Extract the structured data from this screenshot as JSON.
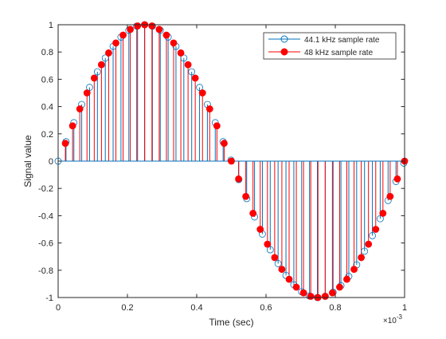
{
  "chart_data": {
    "type": "stem",
    "title": "",
    "xlabel": "Time (sec)",
    "ylabel": "Signal value",
    "x_exponent_label": "×10",
    "x_exponent_power": "-3",
    "xlim": [
      0,
      1
    ],
    "ylim": [
      -1,
      1
    ],
    "x_scale": 0.001,
    "x_ticks": [
      0,
      0.2,
      0.4,
      0.6,
      0.8,
      1
    ],
    "x_tick_labels": [
      "0",
      "0.2",
      "0.4",
      "0.6",
      "0.8",
      "1"
    ],
    "y_ticks": [
      -1,
      -0.8,
      -0.6,
      -0.4,
      -0.2,
      0,
      0.2,
      0.4,
      0.6,
      0.8,
      1
    ],
    "y_tick_labels": [
      "-1",
      "-0.8",
      "-0.6",
      "-0.4",
      "-0.2",
      "0",
      "0.2",
      "0.4",
      "0.6",
      "0.8",
      "1"
    ],
    "grid": false,
    "legend_position": "top-right",
    "series": [
      {
        "name": "44.1 kHz sample rate",
        "color": "#0072BD",
        "marker": "open-circle",
        "x": [
          0,
          0.0227,
          0.0454,
          0.068,
          0.0907,
          0.1134,
          0.1361,
          0.1587,
          0.1814,
          0.2041,
          0.2268,
          0.2494,
          0.2721,
          0.2948,
          0.3175,
          0.3401,
          0.3628,
          0.3855,
          0.4082,
          0.4308,
          0.4535,
          0.4762,
          0.4989,
          0.5215,
          0.5442,
          0.5669,
          0.5896,
          0.6122,
          0.6349,
          0.6576,
          0.6803,
          0.7029,
          0.7256,
          0.7483,
          0.771,
          0.7937,
          0.8163,
          0.839,
          0.8617,
          0.8844,
          0.907,
          0.9297,
          0.9524,
          0.9751,
          0.9977
        ],
        "y": [
          0,
          0.1423,
          0.2817,
          0.4154,
          0.5406,
          0.6549,
          0.7557,
          0.8413,
          0.9096,
          0.9595,
          0.9898,
          1.0,
          0.9898,
          0.9595,
          0.9096,
          0.8413,
          0.7557,
          0.6549,
          0.5406,
          0.4154,
          0.2817,
          0.1423,
          0.0071,
          -0.1352,
          -0.2749,
          -0.4089,
          -0.5347,
          -0.6496,
          -0.7511,
          -0.8375,
          -0.9067,
          -0.9575,
          -0.9888,
          -1.0,
          -0.9908,
          -0.9615,
          -0.9126,
          -0.8451,
          -0.7603,
          -0.6603,
          -0.5465,
          -0.4219,
          -0.2885,
          -0.1494,
          -0.0142
        ]
      },
      {
        "name": "48 kHz sample rate",
        "color": "#FF0000",
        "marker": "filled-circle",
        "x": [
          0.0208,
          0.0417,
          0.0625,
          0.0833,
          0.1042,
          0.125,
          0.1458,
          0.1667,
          0.1875,
          0.2083,
          0.2292,
          0.25,
          0.2708,
          0.2917,
          0.3125,
          0.3333,
          0.3542,
          0.375,
          0.3958,
          0.4167,
          0.4375,
          0.4583,
          0.4792,
          0.5,
          0.5208,
          0.5417,
          0.5625,
          0.5833,
          0.6042,
          0.625,
          0.6458,
          0.6667,
          0.6875,
          0.7083,
          0.7292,
          0.75,
          0.7708,
          0.7917,
          0.8125,
          0.8333,
          0.8542,
          0.875,
          0.8958,
          0.9167,
          0.9375,
          0.9583,
          0.9792,
          1.0
        ],
        "y": [
          0.1305,
          0.2588,
          0.3827,
          0.5,
          0.6088,
          0.7071,
          0.7934,
          0.866,
          0.9239,
          0.9659,
          0.9914,
          1.0,
          0.9914,
          0.9659,
          0.9239,
          0.866,
          0.7934,
          0.7071,
          0.6088,
          0.5,
          0.3827,
          0.2588,
          0.1305,
          0.0,
          -0.1305,
          -0.2588,
          -0.3827,
          -0.5,
          -0.6088,
          -0.7071,
          -0.7934,
          -0.866,
          -0.9239,
          -0.9659,
          -0.9914,
          -1.0,
          -0.9914,
          -0.9659,
          -0.9239,
          -0.866,
          -0.7934,
          -0.7071,
          -0.6088,
          -0.5,
          -0.3827,
          -0.2588,
          -0.1305,
          0.0
        ]
      }
    ]
  }
}
